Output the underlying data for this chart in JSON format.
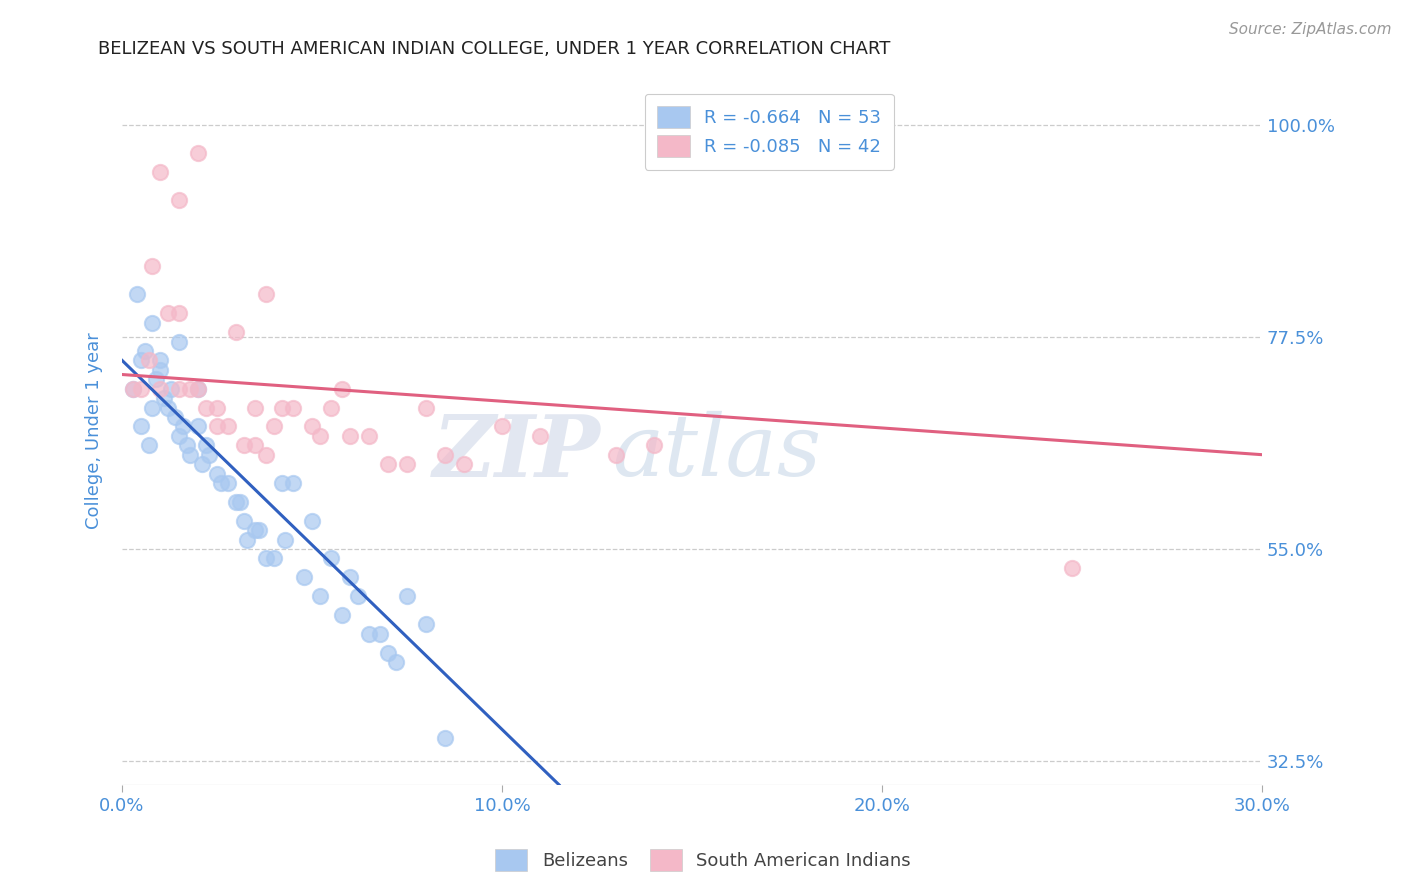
{
  "title": "BELIZEAN VS SOUTH AMERICAN INDIAN COLLEGE, UNDER 1 YEAR CORRELATION CHART",
  "source": "Source: ZipAtlas.com",
  "ylabel": "College, Under 1 year",
  "xlabel": "",
  "xlim": [
    0.0,
    30.0
  ],
  "ylim": [
    30.0,
    105.0
  ],
  "xticks": [
    0.0,
    10.0,
    20.0,
    30.0
  ],
  "yticks": [
    32.5,
    55.0,
    77.5,
    100.0
  ],
  "xticklabels": [
    "0.0%",
    "10.0%",
    "20.0%",
    "30.0%"
  ],
  "yticklabels": [
    "32.5%",
    "55.0%",
    "77.5%",
    "100.0%"
  ],
  "blue_color": "#a8c8f0",
  "pink_color": "#f4b8c8",
  "blue_line_color": "#3060c0",
  "pink_line_color": "#e06080",
  "legend_r1": "R = -0.664",
  "legend_n1": "N = 53",
  "legend_r2": "R = -0.085",
  "legend_n2": "N = 42",
  "legend_label1": "Belizeans",
  "legend_label2": "South American Indians",
  "watermark_zip": "ZIP",
  "watermark_atlas": "atlas",
  "title_color": "#222222",
  "tick_color": "#4a90d9",
  "blue_scatter_x": [
    0.3,
    0.4,
    0.5,
    0.5,
    0.6,
    0.7,
    0.8,
    0.8,
    0.9,
    1.0,
    1.0,
    1.1,
    1.2,
    1.3,
    1.4,
    1.5,
    1.5,
    1.6,
    1.7,
    1.8,
    2.0,
    2.0,
    2.1,
    2.2,
    2.3,
    2.5,
    2.6,
    2.8,
    3.0,
    3.1,
    3.2,
    3.3,
    3.5,
    3.6,
    3.8,
    4.0,
    4.2,
    4.3,
    4.5,
    4.8,
    5.0,
    5.2,
    5.5,
    5.8,
    6.0,
    6.2,
    6.5,
    6.8,
    7.0,
    7.2,
    7.5,
    8.0,
    8.5
  ],
  "blue_scatter_y": [
    72,
    82,
    68,
    75,
    76,
    66,
    70,
    79,
    73,
    74,
    75,
    71,
    70,
    72,
    69,
    67,
    77,
    68,
    66,
    65,
    68,
    72,
    64,
    66,
    65,
    63,
    62,
    62,
    60,
    60,
    58,
    56,
    57,
    57,
    54,
    54,
    62,
    56,
    62,
    52,
    58,
    50,
    54,
    48,
    52,
    50,
    46,
    46,
    44,
    43,
    50,
    47,
    35
  ],
  "pink_scatter_x": [
    0.3,
    0.5,
    0.7,
    0.8,
    1.0,
    1.0,
    1.2,
    1.5,
    1.5,
    1.5,
    1.8,
    2.0,
    2.2,
    2.5,
    2.5,
    2.8,
    3.0,
    3.2,
    3.5,
    3.5,
    3.8,
    4.0,
    4.2,
    4.5,
    5.0,
    5.5,
    6.0,
    6.5,
    7.0,
    7.5,
    8.0,
    8.5,
    9.0,
    10.0,
    11.0,
    13.0,
    14.0,
    2.0,
    3.8,
    5.2,
    25.0,
    5.8
  ],
  "pink_scatter_y": [
    72,
    72,
    75,
    85,
    95,
    72,
    80,
    92,
    80,
    72,
    72,
    72,
    70,
    70,
    68,
    68,
    78,
    66,
    70,
    66,
    65,
    68,
    70,
    70,
    68,
    70,
    67,
    67,
    64,
    64,
    70,
    65,
    64,
    68,
    67,
    65,
    66,
    97,
    82,
    67,
    53,
    72
  ],
  "blue_trend_x0": 0.0,
  "blue_trend_y0": 75.0,
  "blue_trend_x1": 11.5,
  "blue_trend_y1": 30.0,
  "pink_trend_x0": 0.0,
  "pink_trend_y0": 73.5,
  "pink_trend_x1": 30.0,
  "pink_trend_y1": 65.0
}
